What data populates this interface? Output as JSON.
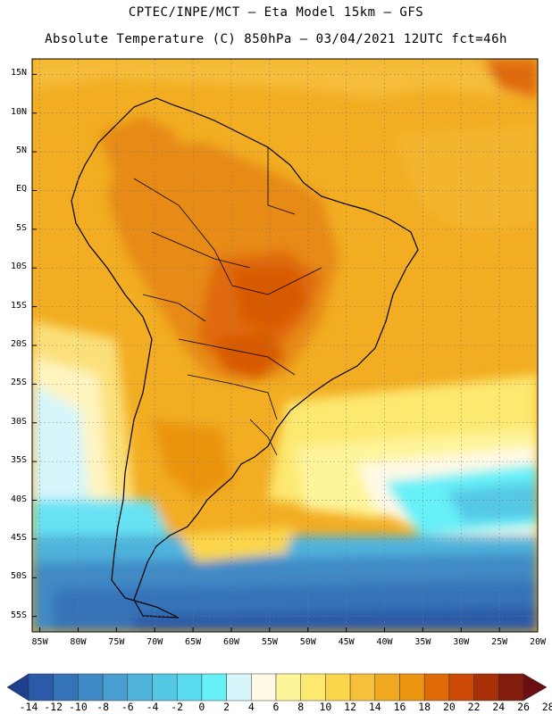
{
  "header": {
    "line1": "CPTEC/INPE/MCT –  Eta Model 15km – GFS",
    "line2": "Absolute Temperature (C) 850hPa – 03/04/2021 12UTC fct=46h"
  },
  "map": {
    "lat_labels": [
      "15N",
      "10N",
      "5N",
      "EQ",
      "5S",
      "10S",
      "15S",
      "20S",
      "25S",
      "30S",
      "35S",
      "40S",
      "45S",
      "50S",
      "55S"
    ],
    "lon_labels": [
      "85W",
      "80W",
      "75W",
      "70W",
      "65W",
      "60W",
      "55W",
      "50W",
      "45W",
      "40W",
      "35W",
      "30W",
      "25W",
      "20W"
    ],
    "gridlines": true
  },
  "colorbar": {
    "labels": [
      "-14",
      "-12",
      "-10",
      "-8",
      "-6",
      "-4",
      "-2",
      "0",
      "2",
      "4",
      "6",
      "8",
      "10",
      "12",
      "14",
      "16",
      "18",
      "20",
      "22",
      "24",
      "26",
      "28"
    ],
    "colors": [
      "#1f3f8f",
      "#2a5aa8",
      "#3573b8",
      "#3f8ac6",
      "#4a9fd2",
      "#4fb3dc",
      "#55c8e6",
      "#5adcf0",
      "#66f0f8",
      "#d6f6fb",
      "#fff9e6",
      "#fef49a",
      "#fde870",
      "#fbd64a",
      "#f7c03a",
      "#f0a820",
      "#ea9410",
      "#e06a08",
      "#cc4a06",
      "#a83008",
      "#821c0c",
      "#6a0e12"
    ]
  }
}
